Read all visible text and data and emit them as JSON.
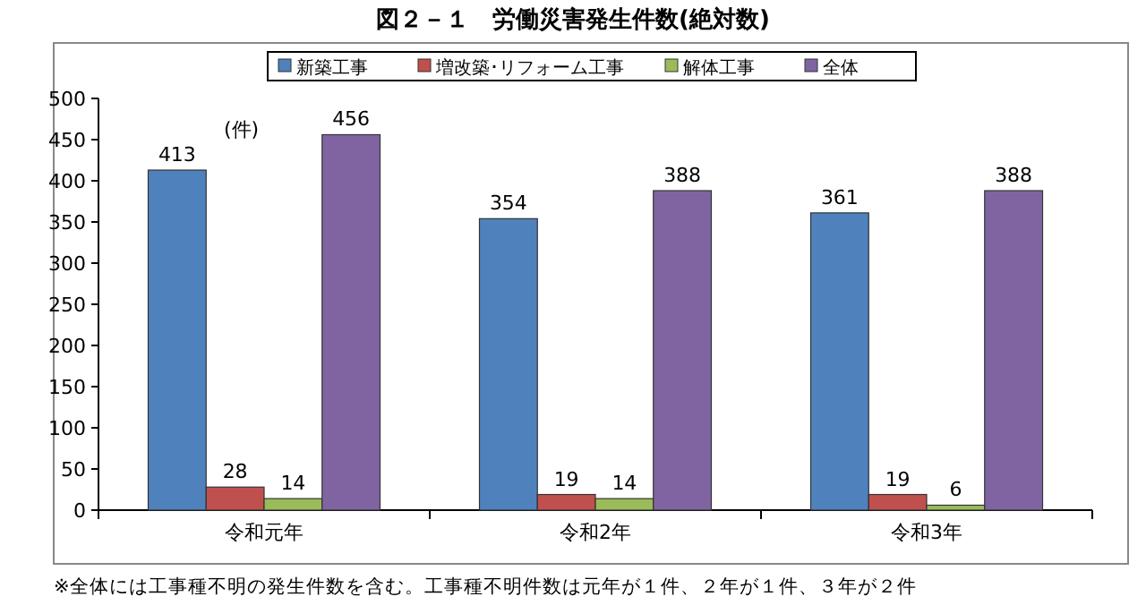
{
  "chart_data": {
    "type": "bar",
    "title": "図２－１　労働災害発生件数(絶対数)",
    "categories": [
      "令和元年",
      "令和2年",
      "令和3年"
    ],
    "series": [
      {
        "name": "新築工事",
        "color": "#4f81bd",
        "values": [
          413,
          354,
          361
        ]
      },
      {
        "name": "増改築･リフォーム工事",
        "color": "#c0504d",
        "values": [
          28,
          19,
          19
        ]
      },
      {
        "name": "解体工事",
        "color": "#9bbb59",
        "values": [
          14,
          14,
          6
        ]
      },
      {
        "name": "全体",
        "color": "#8064a2",
        "values": [
          456,
          388,
          388
        ]
      }
    ],
    "ylim": [
      0,
      500
    ],
    "yticks": [
      0,
      50,
      100,
      150,
      200,
      250,
      300,
      350,
      400,
      450,
      500
    ],
    "grid": false,
    "legend": "top",
    "data_labels": true,
    "annotations": [
      "(件)",
      "※全体には工事種不明の発生件数を含む。工事種不明件数は元年が１件、２年が１件、３年が２件"
    ]
  }
}
